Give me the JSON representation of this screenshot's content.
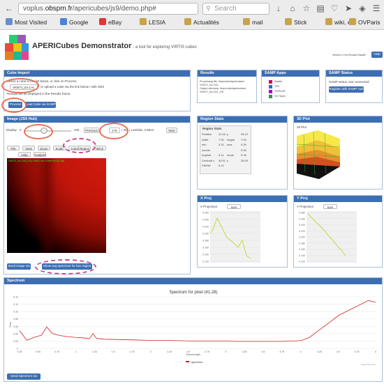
{
  "browser": {
    "url_prefix": "voplus.",
    "url_domain": "obspm.fr",
    "url_path": "/apericubes/js9/demo.php#",
    "search_placeholder": "Search",
    "bookmarks": [
      {
        "label": "Most Visited",
        "color": "#6a8fc7"
      },
      {
        "label": "Google",
        "color": "#4a84d8"
      },
      {
        "label": "eBay",
        "color": "#e53238"
      },
      {
        "label": "LESIA",
        "color": "#c9a34a"
      },
      {
        "label": "Actualités",
        "color": "#c9a34a"
      },
      {
        "label": "mail",
        "color": "#c9a34a"
      },
      {
        "label": "Stick",
        "color": "#c9a34a"
      },
      {
        "label": "wiki, etc",
        "color": "#c9a34a"
      },
      {
        "label": "OVParis",
        "color": "#c9a34a"
      }
    ]
  },
  "header": {
    "title": "APERICubes Demonstrator",
    "subtitle": "- a tool for exploring VIRTIS cubes",
    "version": "Version 1.0 by Renaud Savalle",
    "help_label": "Help"
  },
  "cube_import": {
    "title": "Cube Import",
    "line1": "Select a cube in the list below, or click on Process.",
    "select_value": "VI0071_04.CAL",
    "line2": "or upload a cube via the link below / with SDS",
    "line3": "Results will be displayed in the Results frame.",
    "process_label": "Process",
    "load_label": "Load Cube via SAMP"
  },
  "results": {
    "title": "Results",
    "lines": [
      "Processing file: /tmp/cube/apericubes/",
      "VI0071_04.CAL",
      "Output directory: /tmp/cube/apericubes/",
      "VI0071_04.CAL_OK"
    ]
  },
  "samp_apps": {
    "title": "SAMP Apps",
    "apps": [
      "Aladin",
      "JS9",
      "TOPCAT",
      "VO Spec"
    ]
  },
  "samp_status": {
    "title": "SAMP Status",
    "text": "SAMP status: Not connected",
    "register_label": "Register with SAMP Hub"
  },
  "image": {
    "title": "Image (JS9 Hub)",
    "display_label": "Display",
    "slider_min": "0",
    "slider_max": "432",
    "previous_label": "Previous",
    "band_value": "176",
    "band_info": "/ 432 | Lambda: 2.8612",
    "next_label": "Next",
    "tool_buttons": [
      "File",
      "View",
      "Zoom",
      "Scale",
      "Color",
      "Region",
      "WCS",
      "Help",
      "Analysis"
    ],
    "overlay_text": "VI0071_04.CAL[176] 2.8612 um 0.00e+00 (41,28)",
    "send_label": "Send image via SAMP",
    "show_avg_label": "Show avg spectrum for box region"
  },
  "region_stats": {
    "title": "Region Stats",
    "header": "Region Stats",
    "rows": [
      {
        "k1": "Position",
        "v1": "41.00",
        "k2": "y",
        "v2": "28.12"
      },
      {
        "k1": "width",
        "v1": "7.00",
        "k2": "height",
        "v2": "7.00"
      },
      {
        "k1": "min",
        "v1": "0.10",
        "k2": "max",
        "v2": "0.39"
      },
      {
        "k1": "counts",
        "v1": "",
        "k2": "",
        "v2": "0.36"
      },
      {
        "k1": "Avg/std",
        "v1": "0.11",
        "k2": "mode",
        "v2": "0.39"
      },
      {
        "k1": "Centroid x",
        "v1": "40.91",
        "k2": "y",
        "v2": "28.09"
      },
      {
        "k1": "FWHM",
        "v1": "6.12",
        "k2": "",
        "v2": ""
      }
    ]
  },
  "plot3d": {
    "title": "3D Plot",
    "label": "3d Plot"
  },
  "xproj": {
    "title": "X Proj",
    "label": "X Projection",
    "select": "sum",
    "yticks": [
      "0.260",
      "0.240",
      "0.220",
      "0.200",
      "0.180",
      "0.160",
      "0.140",
      "0.120"
    ]
  },
  "yproj": {
    "title": "Y Proj",
    "label": "Y Projection",
    "select": "sum",
    "yticks": [
      "0.280",
      "0.260",
      "0.240",
      "0.220",
      "0.200",
      "0.180",
      "0.160",
      "0.140",
      "0.120"
    ]
  },
  "spectrum": {
    "title": "Spectrum",
    "send_label": "Send Spectrum via SAMP",
    "credit": "Highcharts.com"
  },
  "chart_data": {
    "type": "line",
    "title": "Spectrum for pixel (41,28)",
    "xlabel": "Wavelength",
    "ylabel": "Flux",
    "legend": "spectrum",
    "ylim": [
      0,
      0.14
    ],
    "xlim": [
      0.25,
      5.1
    ],
    "yticks": [
      "0.14",
      "0.12",
      "0.10",
      "0.08",
      "0.06",
      "0.04",
      "0.02",
      "0"
    ],
    "xticks": [
      "0.25",
      "0.50",
      "0.75",
      "1",
      "1.25",
      "1.5",
      "1.75",
      "2",
      "2.25",
      "2.5",
      "2.75",
      "3",
      "3.25",
      "3.5",
      "3.75",
      "4",
      "4.25",
      "4.5",
      "4.75",
      "5"
    ],
    "series": [
      {
        "name": "spectrum",
        "x": [
          0.25,
          0.35,
          0.45,
          0.55,
          0.62,
          0.7,
          0.8,
          0.9,
          1.0,
          1.1,
          1.2,
          1.25,
          1.3,
          1.4,
          1.6,
          1.8,
          2.0,
          2.2,
          2.4,
          2.6,
          2.8,
          3.0,
          3.2,
          3.4,
          3.6,
          3.8,
          4.0,
          4.1,
          4.2,
          4.3,
          4.4,
          4.5,
          4.6,
          4.7,
          4.8,
          4.9,
          5.0,
          5.1
        ],
        "y": [
          0.048,
          0.022,
          0.03,
          0.036,
          0.058,
          0.04,
          0.035,
          0.032,
          0.03,
          0.029,
          0.026,
          0.04,
          0.027,
          0.025,
          0.024,
          0.023,
          0.022,
          0.022,
          0.021,
          0.02,
          0.02,
          0.02,
          0.019,
          0.019,
          0.019,
          0.019,
          0.02,
          0.022,
          0.03,
          0.045,
          0.06,
          0.075,
          0.09,
          0.1,
          0.11,
          0.12,
          0.13,
          0.125
        ]
      }
    ]
  }
}
